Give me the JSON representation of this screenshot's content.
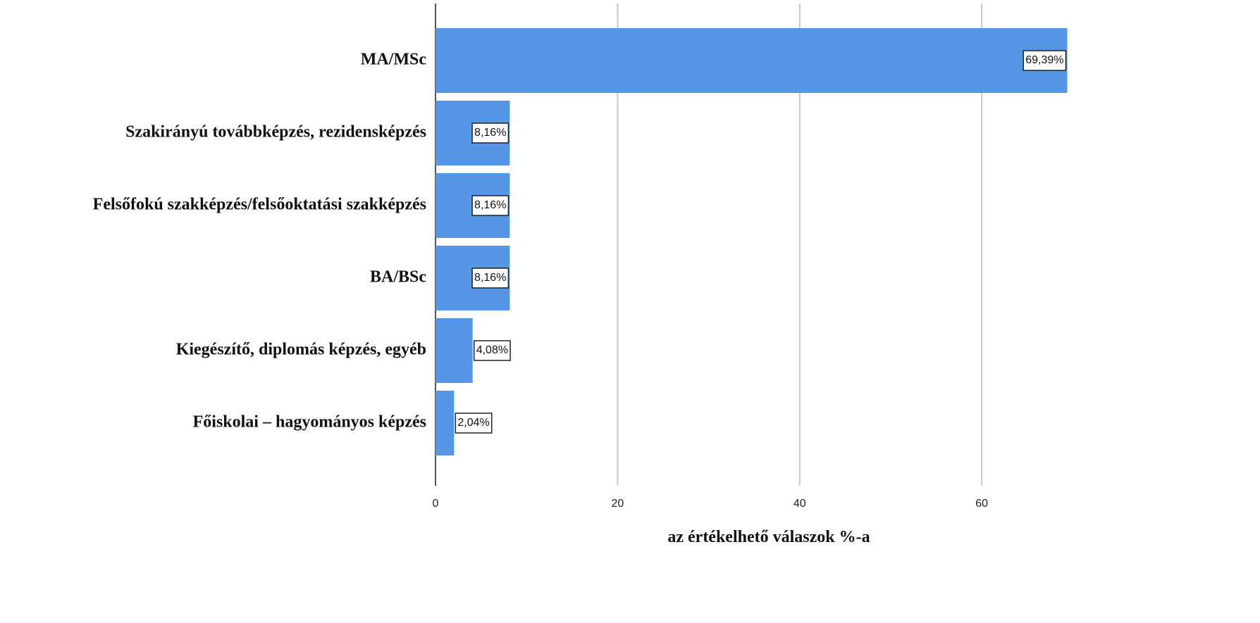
{
  "chart_data": {
    "type": "bar",
    "orientation": "horizontal",
    "categories": [
      "MA/MSc",
      "Szakirányú továbbképzés, rezidensképzés",
      "Felsőfokú szakképzés/felsőoktatási szakképzés",
      "BA/BSc",
      "Kiegészítő, diplomás képzés, egyéb",
      "Főiskolai – hagyományos képzés"
    ],
    "values": [
      69.39,
      8.16,
      8.16,
      8.16,
      4.08,
      2.04
    ],
    "value_labels": [
      "69,39%",
      "8,16%",
      "8,16%",
      "8,16%",
      "4,08%",
      "2,04%"
    ],
    "color": "#5596e6",
    "xlabel": "az értékelhető válaszok %-a",
    "xlim": [
      0,
      73.3
    ],
    "xticks": [
      0,
      20,
      40,
      60
    ],
    "grid": true
  }
}
